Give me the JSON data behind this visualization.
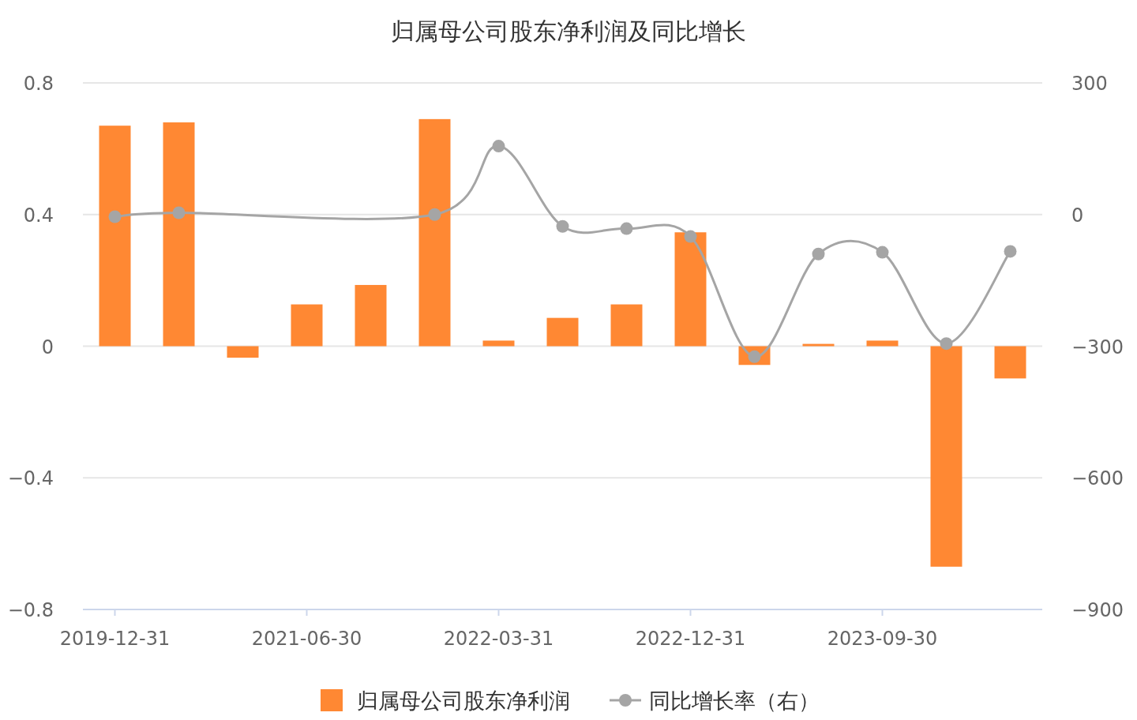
{
  "chart_data": {
    "type": "bar",
    "title": "归属母公司股东净利润及同比增长",
    "categories": [
      "2019-12-31",
      null,
      null,
      "2021-06-30",
      null,
      null,
      "2022-03-31",
      null,
      null,
      "2022-12-31",
      null,
      null,
      "2023-09-30",
      null,
      null
    ],
    "series": [
      {
        "name": "归属母公司股东净利润",
        "color": "#ff8833",
        "values": [
          0.67,
          0.68,
          -0.035,
          0.127,
          0.186,
          0.69,
          0.017,
          0.086,
          0.127,
          0.346,
          -0.057,
          0.007,
          0.017,
          -0.67,
          -0.098
        ]
      },
      {
        "name": "同比增长率（右）",
        "type": "line",
        "axis": "y2",
        "color": "#a5a5a5",
        "marker": "circle",
        "values": [
          -5,
          4,
          null,
          null,
          null,
          0,
          156,
          -27,
          -32,
          -50,
          -324,
          -90,
          -86,
          -294,
          -84
        ]
      }
    ],
    "ylim": [
      -0.8,
      0.8
    ],
    "yticks": [
      -0.8,
      -0.4,
      0,
      0.4,
      0.8
    ],
    "y2lim": [
      -900,
      300
    ],
    "y2ticks": [
      -900,
      -600,
      -300,
      0,
      300
    ],
    "grid": "y",
    "legend": "bottom"
  }
}
